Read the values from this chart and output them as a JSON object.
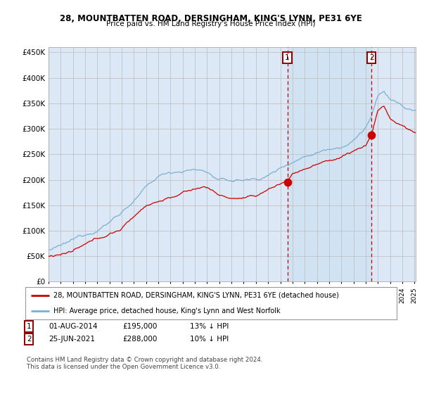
{
  "title1": "28, MOUNTBATTEN ROAD, DERSINGHAM, KING'S LYNN, PE31 6YE",
  "title2": "Price paid vs. HM Land Registry's House Price Index (HPI)",
  "legend_red": "28, MOUNTBATTEN ROAD, DERSINGHAM, KING'S LYNN, PE31 6YE (detached house)",
  "legend_blue": "HPI: Average price, detached house, King's Lynn and West Norfolk",
  "annotation1_date": "01-AUG-2014",
  "annotation1_price": "£195,000",
  "annotation1_hpi": "13% ↓ HPI",
  "annotation2_date": "25-JUN-2021",
  "annotation2_price": "£288,000",
  "annotation2_hpi": "10% ↓ HPI",
  "footer": "Contains HM Land Registry data © Crown copyright and database right 2024.\nThis data is licensed under the Open Government Licence v3.0.",
  "red_color": "#cc0000",
  "blue_color": "#7ab0d4",
  "bg_color": "#dce8f5",
  "grid_color": "#bbbbbb",
  "purchase1_year": 2014.583,
  "purchase1_value": 195000,
  "purchase2_year": 2021.479,
  "purchase2_value": 288000,
  "year_start": 1995,
  "year_end": 2025,
  "ylim_max": 460000,
  "ylim_min": 0
}
